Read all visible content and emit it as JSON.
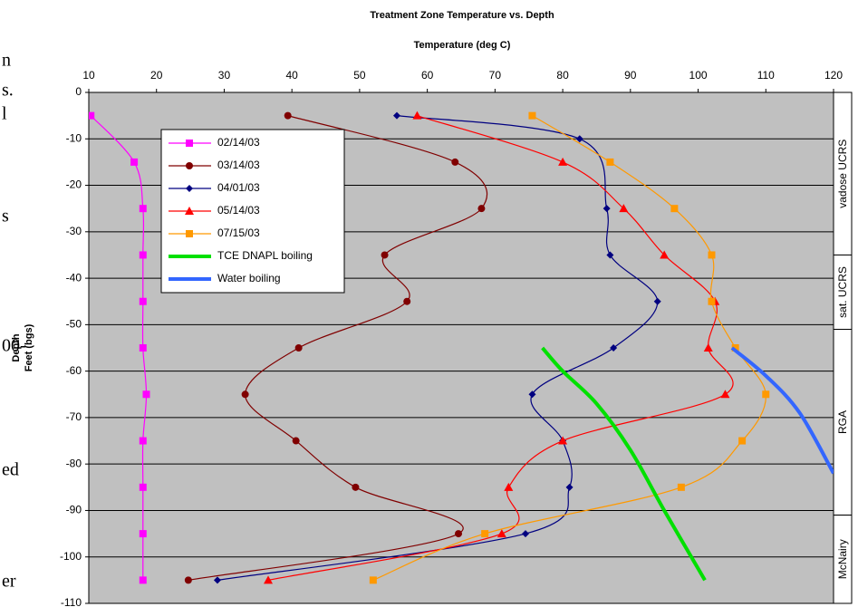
{
  "chart_data": {
    "type": "line",
    "title": "Treatment Zone Temperature vs. Depth",
    "xlabel": "Temperature (deg C)",
    "ylabel": [
      "Depth",
      "Feet (bgs)"
    ],
    "xlim": [
      10,
      120
    ],
    "xticks": [
      10,
      20,
      30,
      40,
      50,
      60,
      70,
      80,
      90,
      100,
      110,
      120
    ],
    "ylim": [
      -110,
      0
    ],
    "yticks": [
      0,
      -10,
      -20,
      -30,
      -40,
      -50,
      -60,
      -70,
      -80,
      -90,
      -100,
      -110
    ],
    "grid": true,
    "background": "#c0c0c0",
    "series": [
      {
        "name": "02/14/03",
        "color": "#ff00ff",
        "marker": "square",
        "x": [
          10.3,
          16.7,
          18,
          18,
          18,
          18,
          18.5,
          18,
          18,
          18,
          18
        ],
        "y": [
          -5,
          -15,
          -25,
          -35,
          -45,
          -55,
          -65,
          -75,
          -85,
          -95,
          -105
        ]
      },
      {
        "name": "03/14/03",
        "color": "#800000",
        "marker": "circle",
        "x": [
          39.4,
          64.1,
          68,
          53.7,
          57,
          41,
          33.1,
          40.6,
          49.4,
          64.6,
          24.7
        ],
        "y": [
          -5,
          -15,
          -25,
          -35,
          -45,
          -55,
          -65,
          -75,
          -85,
          -95,
          -105
        ]
      },
      {
        "name": "04/01/03",
        "color": "#000080",
        "marker": "diamond",
        "x": [
          55.5,
          82.5,
          86.5,
          87,
          94,
          87.5,
          75.5,
          80,
          81,
          74.5,
          29
        ],
        "y": [
          -5,
          -10,
          -25,
          -35,
          -45,
          -55,
          -65,
          -75,
          -85,
          -95,
          -105
        ]
      },
      {
        "name": "05/14/03",
        "color": "#ff0000",
        "marker": "triangle",
        "x": [
          58.5,
          80,
          89,
          95,
          102.5,
          101.5,
          104,
          80,
          72,
          71,
          36.5
        ],
        "y": [
          -5,
          -15,
          -25,
          -35,
          -45,
          -55,
          -65,
          -75,
          -85,
          -95,
          -105
        ]
      },
      {
        "name": "07/15/03",
        "color": "#ff9900",
        "marker": "square",
        "x": [
          75.5,
          87,
          96.5,
          102,
          102,
          105.5,
          110,
          106.5,
          97.5,
          68.5,
          52
        ],
        "y": [
          -5,
          -15,
          -25,
          -35,
          -45,
          -55,
          -65,
          -75,
          -85,
          -95,
          -105
        ]
      },
      {
        "name": "TCE DNAPL boiling",
        "color": "#00e000",
        "marker": "none",
        "x": [
          77,
          80,
          85,
          90,
          95,
          101
        ],
        "y": [
          -55,
          -60,
          -67,
          -77,
          -90,
          -105
        ]
      },
      {
        "name": "Water boiling",
        "color": "#3366ff",
        "marker": "none",
        "x": [
          105,
          110,
          115,
          120
        ],
        "y": [
          -55,
          -61,
          -69,
          -82
        ]
      }
    ],
    "zones": [
      {
        "label": "vadose UCRS",
        "from": 0,
        "to": -35
      },
      {
        "label": "sat. UCRS",
        "from": -35,
        "to": -51
      },
      {
        "label": "RGA",
        "from": -51,
        "to": -91
      },
      {
        "label": "McNairy",
        "from": -91,
        "to": -110
      }
    ]
  },
  "margin_text": [
    "n",
    "s.",
    "l",
    "s",
    "00-",
    "ed",
    "er"
  ]
}
